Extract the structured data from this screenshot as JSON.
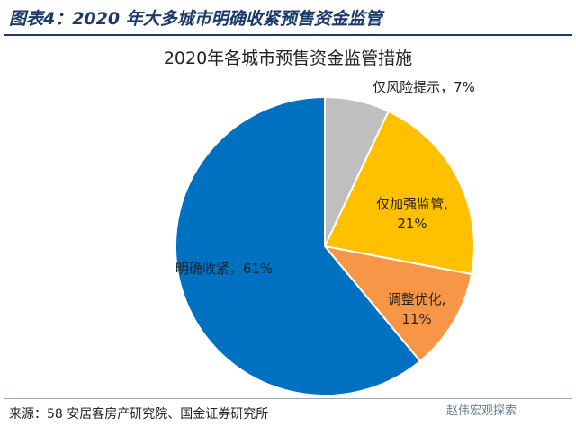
{
  "figure_title": "图表4：2020 年大多城市明确收紧预售资金监管",
  "source": "来源：58 安居客房产研究院、国金证券研究所",
  "watermark": "赵伟宏观探索",
  "chart_data": {
    "type": "pie",
    "title": "2020年各城市预售资金监管措施",
    "slices": [
      {
        "label": "仅风险提示",
        "value": 7,
        "display": "仅风险提示，7%",
        "color": "#bfbfbf"
      },
      {
        "label": "仅加强监管",
        "value": 21,
        "display_lines": [
          "仅加强监管,",
          "21%"
        ],
        "color": "#ffc000"
      },
      {
        "label": "调整优化",
        "value": 11,
        "display_lines": [
          "调整优化,",
          "11%"
        ],
        "color": "#f79646"
      },
      {
        "label": "明确收紧",
        "value": 61,
        "display": "明确收紧，61%",
        "color": "#0070c0"
      }
    ]
  }
}
